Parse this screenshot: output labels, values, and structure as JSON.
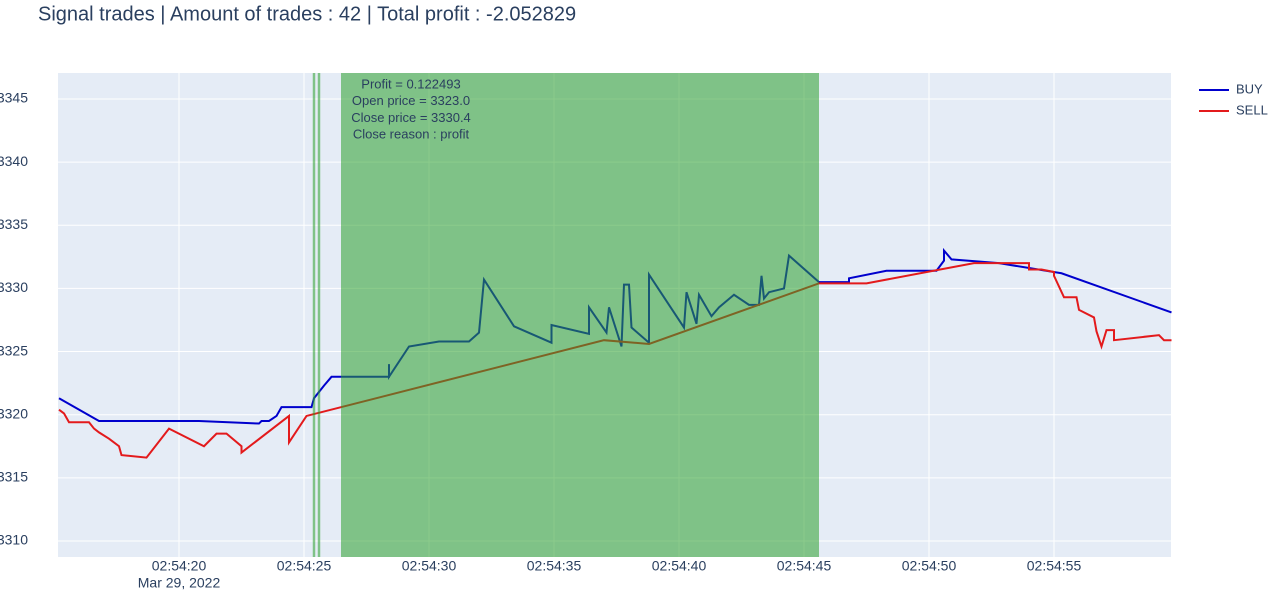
{
  "chart_data": {
    "type": "line",
    "title": "Signal trades | Amount of trades : 42 | Total profit : -2.052829",
    "date_label": "Mar 29, 2022",
    "xlim": [
      "02:54:15.16",
      "02:54:59.68"
    ],
    "xticks": [
      "02:54:20",
      "02:54:25",
      "02:54:30",
      "02:54:35",
      "02:54:40",
      "02:54:45",
      "02:54:50",
      "02:54:55"
    ],
    "ylim": [
      3308.73,
      3347.06
    ],
    "yticks": [
      3310,
      3315,
      3320,
      3325,
      3330,
      3335,
      3340,
      3345
    ],
    "grid": true,
    "legend": "top-right",
    "series": [
      {
        "name": "BUY",
        "color": "#0000cd",
        "x": [
          "02:54:15.2",
          "02:54:16.8",
          "02:54:20.8",
          "02:54:23.2",
          "02:54:23.3",
          "02:54:23.6",
          "02:54:23.9",
          "02:54:24.1",
          "02:54:25.3",
          "02:54:25.4",
          "02:54:25.8",
          "02:54:26.1",
          "02:54:28.4",
          "02:54:28.4",
          "02:54:28.4",
          "02:54:29.2",
          "02:54:30.4",
          "02:54:31.6",
          "02:54:32.0",
          "02:54:32.2",
          "02:54:33.4",
          "02:54:34.9",
          "02:54:34.9",
          "02:54:36.4",
          "02:54:36.4",
          "02:54:37.1",
          "02:54:37.2",
          "02:54:37.7",
          "02:54:37.8",
          "02:54:38.0",
          "02:54:38.1",
          "02:54:38.8",
          "02:54:38.8",
          "02:54:40.2",
          "02:54:40.3",
          "02:54:40.7",
          "02:54:40.8",
          "02:54:41.3",
          "02:54:41.6",
          "02:54:42.2",
          "02:54:42.8",
          "02:54:43.2",
          "02:54:43.3",
          "02:54:43.4",
          "02:54:43.6",
          "02:54:44.2",
          "02:54:44.4",
          "02:54:45.6",
          "02:54:46.8",
          "02:54:46.8",
          "02:54:48.3",
          "02:54:50.3",
          "02:54:50.6",
          "02:54:50.6",
          "02:54:50.9",
          "02:54:52.8",
          "02:54:55.3",
          "02:54:59.7"
        ],
        "values": [
          3321.3,
          3319.5,
          3319.5,
          3319.3,
          3319.5,
          3319.5,
          3319.9,
          3320.6,
          3320.6,
          3321.3,
          3322.3,
          3323.0,
          3323.0,
          3324.0,
          3323.0,
          3325.4,
          3325.8,
          3325.8,
          3326.5,
          3330.7,
          3327.0,
          3325.7,
          3327.1,
          3326.4,
          3328.5,
          3326.5,
          3328.5,
          3325.4,
          3330.3,
          3330.3,
          3326.9,
          3325.7,
          3331.1,
          3326.9,
          3329.7,
          3327.2,
          3329.5,
          3327.8,
          3328.5,
          3329.5,
          3328.7,
          3328.7,
          3331.0,
          3329.2,
          3329.7,
          3330.0,
          3332.6,
          3330.5,
          3330.5,
          3330.8,
          3331.4,
          3331.4,
          3332.2,
          3333.0,
          3332.3,
          3332.0,
          3331.2,
          3328.1
        ]
      },
      {
        "name": "SELL",
        "color": "#e31a1c",
        "x": [
          "02:54:15.2",
          "02:54:15.4",
          "02:54:15.6",
          "02:54:16.4",
          "02:54:16.6",
          "02:54:16.8",
          "02:54:17.2",
          "02:54:17.6",
          "02:54:17.7",
          "02:54:18.7",
          "02:54:19.6",
          "02:54:21.0",
          "02:54:21.5",
          "02:54:21.9",
          "02:54:22.5",
          "02:54:22.5",
          "02:54:24.4",
          "02:54:24.4",
          "02:54:25.1",
          "02:54:37.0",
          "02:54:38.8",
          "02:54:45.6",
          "02:54:47.5",
          "02:54:51.8",
          "02:54:54.0",
          "02:54:54.0",
          "02:54:54.5",
          "02:54:55.0",
          "02:54:55.0",
          "02:54:55.4",
          "02:54:55.9",
          "02:54:56.0",
          "02:54:56.6",
          "02:54:56.7",
          "02:54:56.9",
          "02:54:57.1",
          "02:54:57.4",
          "02:54:57.4",
          "02:54:59.2",
          "02:54:59.4",
          "02:54:59.7"
        ],
        "values": [
          3320.4,
          3320.1,
          3319.4,
          3319.4,
          3318.9,
          3318.6,
          3318.1,
          3317.5,
          3316.8,
          3316.6,
          3318.9,
          3317.5,
          3318.5,
          3318.5,
          3317.5,
          3317.0,
          3319.9,
          3317.8,
          3319.9,
          3325.9,
          3325.6,
          3330.4,
          3330.4,
          3332.0,
          3332.0,
          3331.5,
          3331.5,
          3331.3,
          3331.0,
          3329.3,
          3329.3,
          3328.3,
          3327.7,
          3326.6,
          3325.4,
          3326.7,
          3326.7,
          3325.9,
          3326.3,
          3325.9,
          3325.9
        ]
      }
    ],
    "shapes": [
      {
        "x0": "02:54:25.35",
        "x1": "02:54:25.45",
        "color": "#2ca02c"
      },
      {
        "x0": "02:54:25.55",
        "x1": "02:54:25.65",
        "color": "#2ca02c"
      },
      {
        "x0": "02:54:26.48",
        "x1": "02:54:45.6",
        "color": "#2ca02c"
      }
    ],
    "annotation": [
      "Profit = 0.122493",
      "Open price = 3323.0",
      "Close price = 3330.4",
      "Close reason : profit"
    ]
  }
}
